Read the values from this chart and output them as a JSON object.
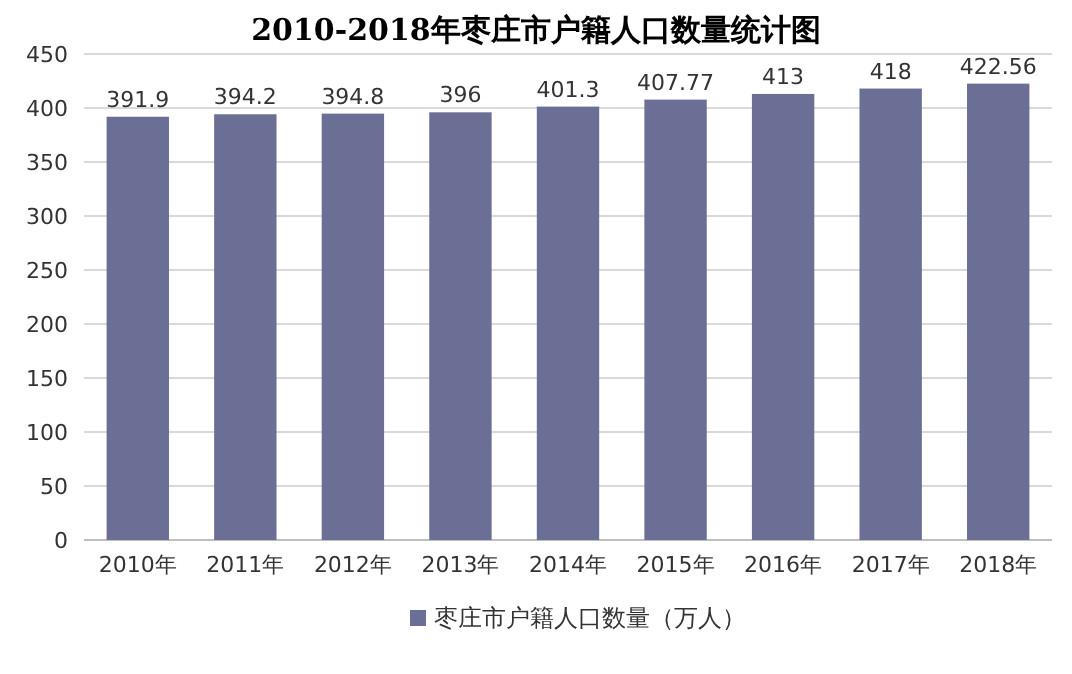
{
  "chart_data": {
    "type": "bar",
    "title": "2010-2018年枣庄市户籍人口数量统计图",
    "categories": [
      "2010年",
      "2011年",
      "2012年",
      "2013年",
      "2014年",
      "2015年",
      "2016年",
      "2017年",
      "2018年"
    ],
    "series": [
      {
        "name": "枣庄市户籍人口数量（万人）",
        "color": "#6b6f96",
        "values": [
          391.9,
          394.2,
          394.8,
          396,
          401.3,
          407.77,
          413,
          418,
          422.56
        ]
      }
    ],
    "ylim": [
      0,
      450
    ],
    "yticks": [
      0,
      50,
      100,
      150,
      200,
      250,
      300,
      350,
      400,
      450
    ],
    "grid": "y",
    "legend": "bottom",
    "data_labels": true
  }
}
